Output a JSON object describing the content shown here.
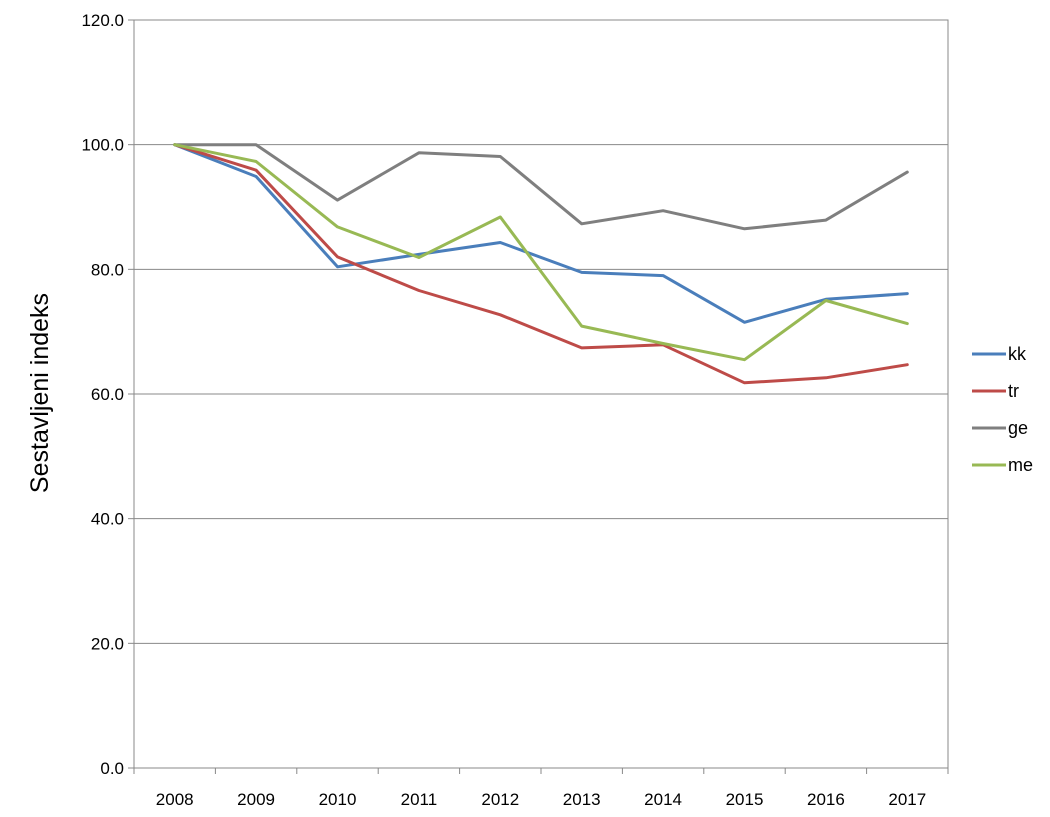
{
  "chart_data": {
    "type": "line",
    "title": "",
    "xlabel": "",
    "ylabel": "Sestavljeni indeks",
    "ylim": [
      0,
      120
    ],
    "ytick_step": 20,
    "ytick_format_decimals": 1,
    "grid": "horizontal",
    "legend_position": "right",
    "categories": [
      "2008",
      "2009",
      "2010",
      "2011",
      "2012",
      "2013",
      "2014",
      "2015",
      "2016",
      "2017"
    ],
    "series": [
      {
        "name": "kk",
        "color": "#4a7ebb",
        "values": [
          100.0,
          94.9,
          80.4,
          82.4,
          84.3,
          79.5,
          79.0,
          71.5,
          75.2,
          76.1
        ]
      },
      {
        "name": "tr",
        "color": "#be4b48",
        "values": [
          100.0,
          95.9,
          82.0,
          76.6,
          72.7,
          67.4,
          67.9,
          61.8,
          62.6,
          64.7
        ]
      },
      {
        "name": "ge",
        "color": "#7f7f7f",
        "values": [
          100.0,
          100.0,
          91.1,
          98.7,
          98.1,
          87.3,
          89.4,
          86.5,
          87.9,
          95.6
        ]
      },
      {
        "name": "me",
        "color": "#98b954",
        "values": [
          100.0,
          97.3,
          86.8,
          81.9,
          88.4,
          70.9,
          68.1,
          65.5,
          75.0,
          71.3
        ]
      }
    ]
  }
}
